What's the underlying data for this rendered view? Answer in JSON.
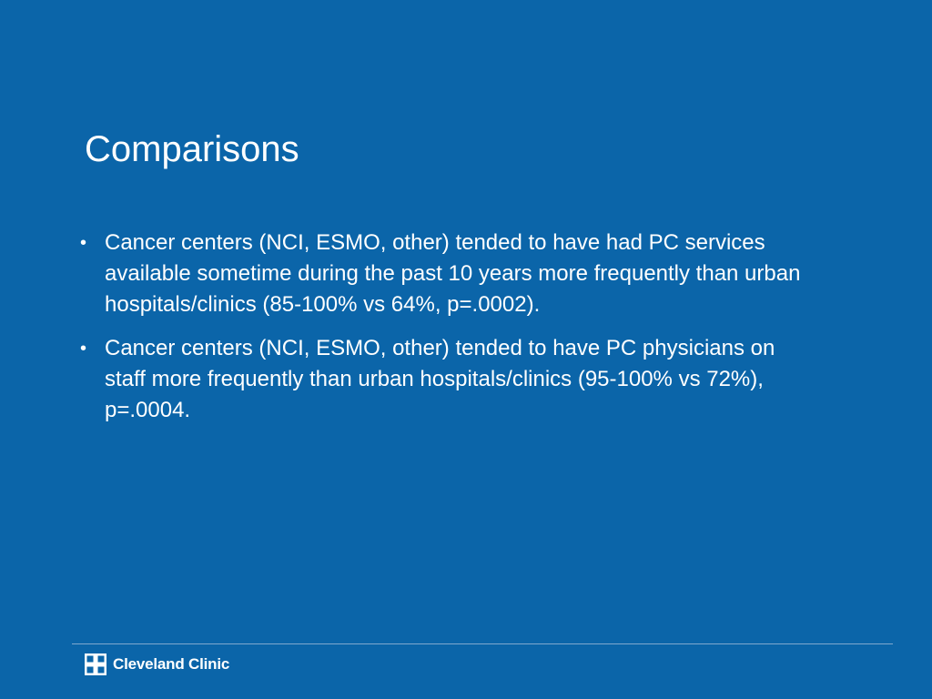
{
  "slide": {
    "title": "Comparisons",
    "bullets": [
      {
        "marker": "•",
        "text": "Cancer centers (NCI, ESMO, other) tended to have had PC services available sometime during the past 10 years more frequently than urban hospitals/clinics (85-100% vs 64%, p=.0002)."
      },
      {
        "marker": "•",
        "text": "Cancer centers (NCI, ESMO, other) tended to have PC physicians on staff more frequently than urban hospitals/clinics (95-100% vs 72%), p=.0004."
      }
    ]
  },
  "footer": {
    "logo_text": "Cleveland Clinic",
    "logo_icon": "cleveland-clinic-cross-icon"
  },
  "colors": {
    "background": "#0b65a9",
    "text": "#ffffff",
    "rule": "#7fa9cf"
  }
}
